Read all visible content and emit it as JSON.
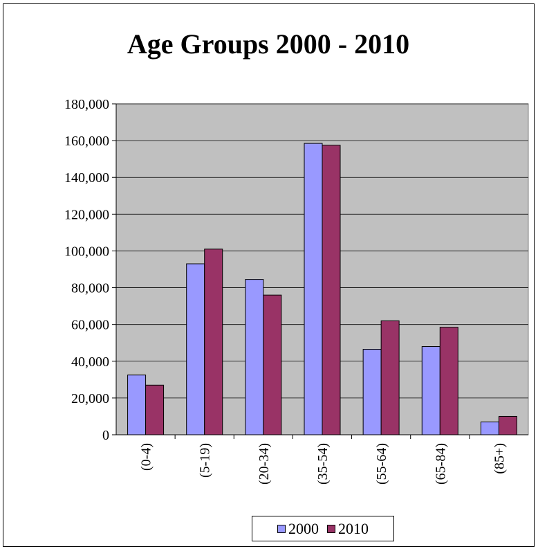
{
  "chart_data": {
    "type": "bar",
    "title": "Age Groups 2000 - 2010",
    "categories": [
      "(0-4)",
      "(5-19)",
      "(20-34)",
      "(35-54)",
      "(55-64)",
      "(65-84)",
      "(85+)"
    ],
    "series": [
      {
        "name": "2000",
        "color": "#9999ff",
        "values": [
          32500,
          93000,
          84500,
          158500,
          46500,
          48000,
          7000
        ]
      },
      {
        "name": "2010",
        "color": "#993366",
        "values": [
          27000,
          101000,
          76000,
          157500,
          62000,
          58500,
          10000
        ]
      }
    ],
    "ylim": [
      0,
      180000
    ],
    "y_ticks": [
      0,
      20000,
      40000,
      60000,
      80000,
      100000,
      120000,
      140000,
      160000,
      180000
    ],
    "y_tick_labels": [
      "0",
      "20,000",
      "40,000",
      "60,000",
      "80,000",
      "100,000",
      "120,000",
      "140,000",
      "160,000",
      "180,000"
    ],
    "grid": true,
    "plot_background": "#c0c0c0",
    "legend_position": "bottom"
  }
}
